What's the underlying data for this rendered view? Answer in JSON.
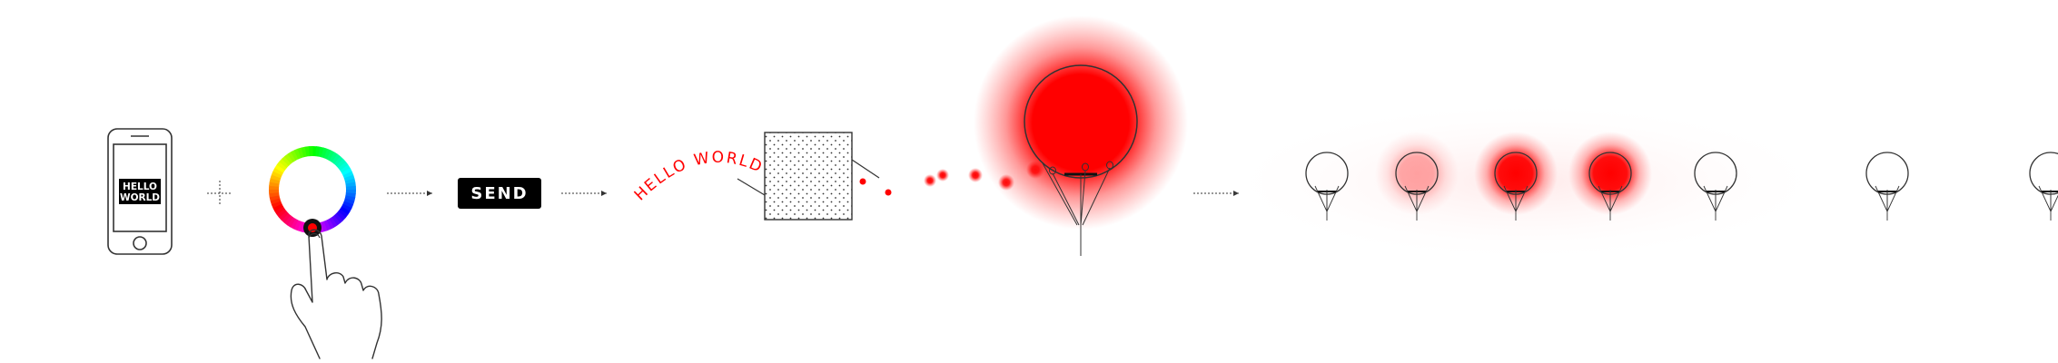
{
  "phone": {
    "screen_line1": "HELLO",
    "screen_line2": "WORLD"
  },
  "send_button": {
    "label": "SEND"
  },
  "message": {
    "text": "HELLO WORLD"
  },
  "colors": {
    "accent": "#ff0000",
    "line": "#333333",
    "background": "#ffffff"
  },
  "icons": [
    "phone-icon",
    "color-wheel-icon",
    "hand-pointer-icon",
    "plus-icon",
    "arrow-right-icon",
    "transmitter-icon",
    "balloon-icon"
  ],
  "balloons": [
    {
      "name": "balloon-1",
      "glow": 0
    },
    {
      "name": "balloon-2",
      "glow": 0.35
    },
    {
      "name": "balloon-3",
      "glow": 1
    },
    {
      "name": "balloon-4",
      "glow": 1
    },
    {
      "name": "balloon-5",
      "glow": 0
    },
    {
      "name": "balloon-6",
      "glow": 0
    },
    {
      "name": "balloon-7",
      "glow": 0
    }
  ]
}
